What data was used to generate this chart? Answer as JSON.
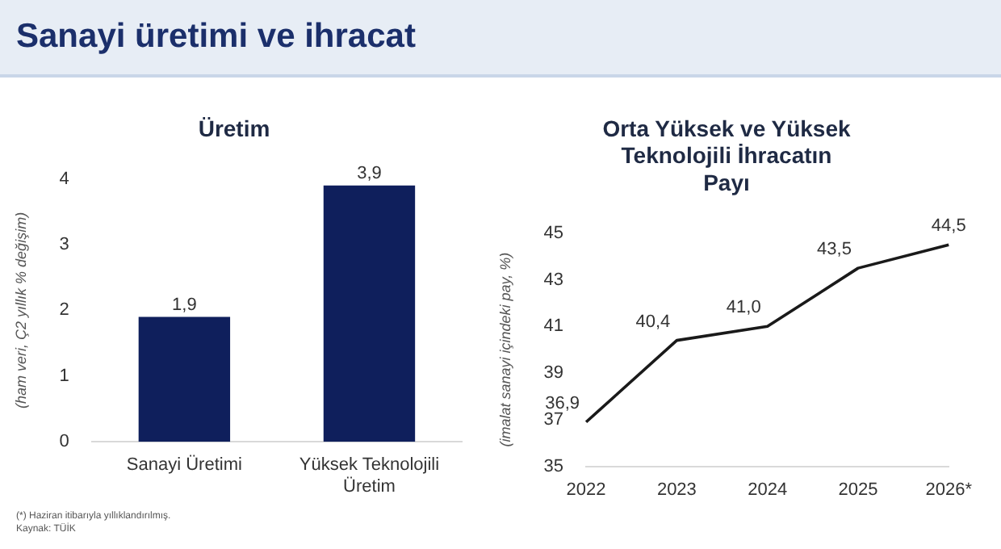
{
  "chart_data": [
    {
      "type": "other",
      "title": "Sanayi üretimi ve ihracat"
    },
    {
      "type": "bar",
      "title": "Üretim",
      "ylabel": "(ham veri, Ç2 yıllık % değişim)",
      "categories": [
        "Sanayi Üretimi",
        "Yüksek Teknolojili Üretim"
      ],
      "values": [
        1.9,
        3.9
      ],
      "value_labels": [
        "1,9",
        "3,9"
      ],
      "color": "#0f1f5c",
      "ylim": [
        0,
        4
      ],
      "yticks": [
        0,
        1,
        2,
        3,
        4
      ],
      "grid": false,
      "legend": false,
      "annotations": [
        "(*) Haziran itibarıyla yıllıklandırılmış.",
        "Kaynak: TÜİK"
      ]
    },
    {
      "type": "line",
      "title": "Orta Yüksek ve Yüksek Teknolojili İhracatın Payı",
      "ylabel": "(imalat sanayi içindeki pay, %)",
      "categories": [
        "2022",
        "2023",
        "2024",
        "2025",
        "2026*"
      ],
      "values": [
        36.9,
        40.4,
        41.0,
        43.5,
        44.5
      ],
      "value_labels": [
        "36,9",
        "40,4",
        "41,0",
        "43,5",
        "44,5"
      ],
      "color": "#1a1a1a",
      "marker": "none",
      "line_style": "solid",
      "ylim": [
        35,
        45
      ],
      "yticks": [
        35,
        37,
        39,
        41,
        43,
        45
      ],
      "grid": false,
      "legend": false
    }
  ]
}
